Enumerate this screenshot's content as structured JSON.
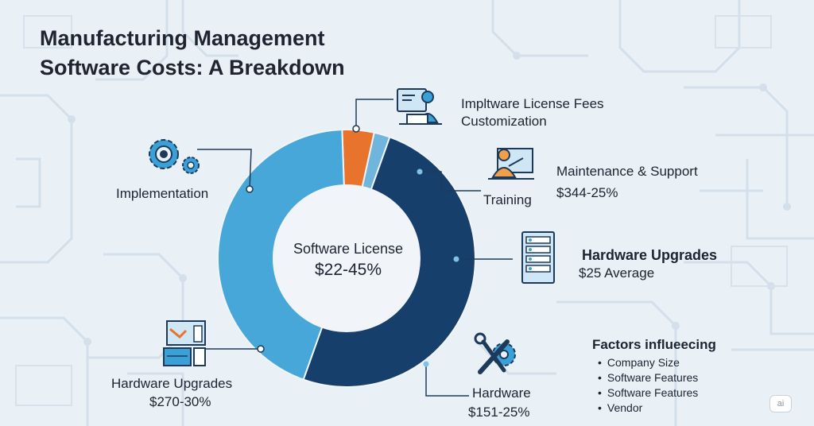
{
  "title_line1": "Manufacturing Management",
  "title_line2": "Software Costs: A Breakdown",
  "chart_data": {
    "type": "pie",
    "donut": true,
    "slices": [
      {
        "color": "#e8732d",
        "value": 4
      },
      {
        "color": "#6fb5dc",
        "value": 2
      },
      {
        "color": "#173f6b",
        "value": 50
      },
      {
        "color": "#46a7d8",
        "value": 44
      }
    ],
    "center_label": "Software License",
    "center_value": "$22-45%"
  },
  "callouts": {
    "license_fees": "Impltware License Fees",
    "customization": "Customization",
    "maintenance_label": "Maintenance & Support",
    "maintenance_value": "$344-25%",
    "training": "Training",
    "hardware_upgrades_label": "Hardware Upgrades",
    "hardware_upgrades_value": "$25 Average",
    "implementation": "Implementation",
    "hw_upgrades_left_label": "Hardware Upgrades",
    "hw_upgrades_left_value": "$270-30%",
    "hardware_label": "Hardware",
    "hardware_value": "$151-25%"
  },
  "factors": {
    "title": "Factors influeecing",
    "items": [
      "Company Size",
      "Software Features",
      "Software Features",
      "Vendor"
    ]
  },
  "badge": "ai"
}
